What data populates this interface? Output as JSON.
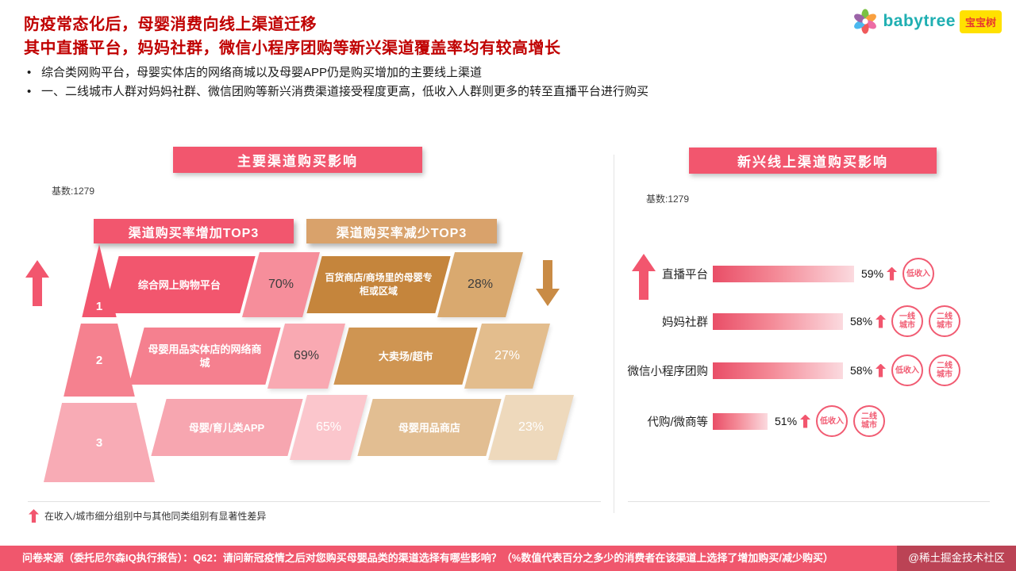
{
  "header": {
    "title_line1": "防疫常态化后，母婴消费向线上渠道迁移",
    "title_line2": "其中直播平台，妈妈社群，微信小程序团购等新兴渠道覆盖率均有较高增长",
    "bullets": [
      "综合类网购平台，母婴实体店的网络商城以及母婴APP仍是购买增加的主要线上渠道",
      "一、二线城市人群对妈妈社群、微信团购等新兴消费渠道接受程度更高，低收入人群则更多的转至直播平台进行购买"
    ]
  },
  "logo": {
    "brand": "babytree",
    "badge": "宝宝树"
  },
  "left_panel": {
    "title": "主要渠道购买影响",
    "base_label": "基数:1279",
    "increase_header": "渠道购买率增加TOP3",
    "decrease_header": "渠道购买率减少TOP3",
    "rows": [
      {
        "rank": "1",
        "inc_label": "综合网上购物平台",
        "inc_value": "70%",
        "dec_label": "百货商店/商场里的母婴专柜或区域",
        "dec_value": "28%"
      },
      {
        "rank": "2",
        "inc_label": "母婴用品实体店的网络商城",
        "inc_value": "69%",
        "dec_label": "大卖场/超市",
        "dec_value": "27%"
      },
      {
        "rank": "3",
        "inc_label": "母婴/育儿类APP",
        "inc_value": "65%",
        "dec_label": "母婴用品商店",
        "dec_value": "23%"
      }
    ],
    "footnote": "在收入/城市细分组别中与其他同类组别有显著性差异"
  },
  "right_panel": {
    "title": "新兴线上渠道购买影响",
    "base_label": "基数:1279",
    "bars": [
      {
        "label": "直播平台",
        "value": "59%",
        "pct": 59,
        "badges": [
          "低收入"
        ]
      },
      {
        "label": "妈妈社群",
        "value": "58%",
        "pct": 58,
        "badges": [
          "一线\n城市",
          "二线\n城市"
        ]
      },
      {
        "label": "微信小程序团购",
        "value": "58%",
        "pct": 58,
        "badges": [
          "低收入",
          "二线\n城市"
        ]
      },
      {
        "label": "代购/微商等",
        "value": "51%",
        "pct": 51,
        "badges": [
          "低收入",
          "二线\n城市"
        ]
      }
    ]
  },
  "footer": {
    "text": "问卷来源（委托尼尔森IQ执行报告）：Q62：请问新冠疫情之后对您购买母婴品类的渠道选择有哪些影响？（%数值代表百分之多少的消费者在该渠道上选择了增加购买/减少购买）",
    "watermark": "@稀土掘金技术社区"
  },
  "colors": {
    "accent_pink": "#F2566E",
    "accent_tan": "#C98B45",
    "title_red": "#C00000"
  },
  "chart_data": [
    {
      "type": "bar",
      "title": "主要渠道购买影响",
      "base_n": 1279,
      "unit": "%",
      "series": [
        {
          "name": "渠道购买率增加TOP3",
          "categories": [
            "综合网上购物平台",
            "母婴用品实体店的网络商城",
            "母婴/育儿类APP"
          ],
          "values": [
            70,
            69,
            65
          ]
        },
        {
          "name": "渠道购买率减少TOP3",
          "categories": [
            "百货商店/商场里的母婴专柜或区域",
            "大卖场/超市",
            "母婴用品商店"
          ],
          "values": [
            28,
            27,
            23
          ]
        }
      ],
      "annotations": [
        "在收入/城市细分组别中与其他同类组别有显著性差异"
      ]
    },
    {
      "type": "bar",
      "title": "新兴线上渠道购买影响",
      "base_n": 1279,
      "unit": "%",
      "categories": [
        "直播平台",
        "妈妈社群",
        "微信小程序团购",
        "代购/微商等"
      ],
      "values": [
        59,
        58,
        58,
        51
      ],
      "significant_segments": [
        [
          "低收入"
        ],
        [
          "一线城市",
          "二线城市"
        ],
        [
          "低收入",
          "二线城市"
        ],
        [
          "低收入",
          "二线城市"
        ]
      ],
      "layout": {
        "orientation": "horizontal",
        "implied_x_min": 46
      }
    }
  ]
}
